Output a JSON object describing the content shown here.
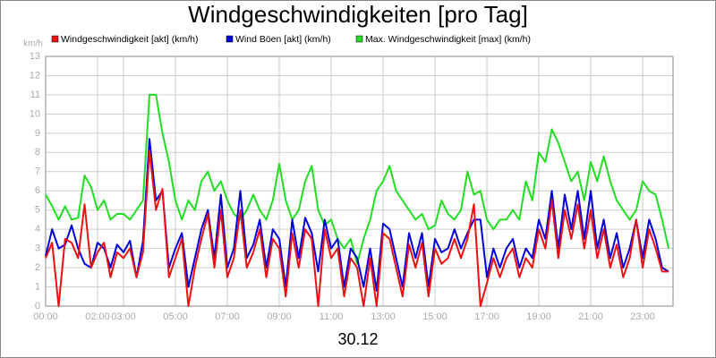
{
  "chart_data": {
    "type": "line",
    "title": "Windgeschwindigkeiten [pro Tag]",
    "y_label": "km/h",
    "x_label": "30.12",
    "xlim": [
      0,
      24.17
    ],
    "xticks": [
      {
        "value": 0,
        "label": "00:00"
      },
      {
        "value": 2,
        "label": "02:00"
      },
      {
        "value": 3,
        "label": "03:00"
      },
      {
        "value": 5,
        "label": "05:00"
      },
      {
        "value": 7,
        "label": "07:00"
      },
      {
        "value": 9,
        "label": "09:00"
      },
      {
        "value": 11,
        "label": "11:00"
      },
      {
        "value": 13,
        "label": "13:00"
      },
      {
        "value": 15,
        "label": "15:00"
      },
      {
        "value": 17,
        "label": "17:00"
      },
      {
        "value": 19,
        "label": "19:00"
      },
      {
        "value": 21,
        "label": "21:00"
      },
      {
        "value": 23,
        "label": "23:00"
      }
    ],
    "ylim": [
      0,
      13
    ],
    "yticks": [
      0,
      1,
      2,
      3,
      4,
      5,
      6,
      7,
      8,
      9,
      10,
      11,
      12,
      13
    ],
    "grid": true,
    "legend": "top-left",
    "x": [
      0,
      0.25,
      0.5,
      0.75,
      1,
      1.25,
      1.5,
      1.75,
      2,
      2.25,
      2.5,
      2.75,
      3,
      3.25,
      3.5,
      3.75,
      4,
      4.25,
      4.5,
      4.75,
      5,
      5.25,
      5.5,
      5.75,
      6,
      6.25,
      6.5,
      6.75,
      7,
      7.25,
      7.5,
      7.75,
      8,
      8.25,
      8.5,
      8.75,
      9,
      9.25,
      9.5,
      9.75,
      10,
      10.25,
      10.5,
      10.75,
      11,
      11.25,
      11.5,
      11.75,
      12,
      12.25,
      12.5,
      12.75,
      13,
      13.25,
      13.5,
      13.75,
      14,
      14.25,
      14.5,
      14.75,
      15,
      15.25,
      15.5,
      15.75,
      16,
      16.25,
      16.5,
      16.75,
      17,
      17.25,
      17.5,
      17.75,
      18,
      18.25,
      18.5,
      18.75,
      19,
      19.25,
      19.5,
      19.75,
      20,
      20.25,
      20.5,
      20.75,
      21,
      21.25,
      21.5,
      21.75,
      22,
      22.25,
      22.5,
      22.75,
      23,
      23.25,
      23.5,
      23.75,
      24
    ],
    "series": [
      {
        "name": "Windgeschwindigkeit [akt] (km/h)",
        "color": "#ee1111",
        "values": [
          2.5,
          3.3,
          0.0,
          3.5,
          3.3,
          2.5,
          5.3,
          2.0,
          2.8,
          3.3,
          1.5,
          2.8,
          2.5,
          3.0,
          1.5,
          2.8,
          8.1,
          5.0,
          6.1,
          1.5,
          2.5,
          3.5,
          0.0,
          2.0,
          3.5,
          4.8,
          2.0,
          5.0,
          1.5,
          2.5,
          5.0,
          2.0,
          2.8,
          4.0,
          1.5,
          3.5,
          3.0,
          0.5,
          3.8,
          2.0,
          4.0,
          3.5,
          0.0,
          4.0,
          2.5,
          3.0,
          0.5,
          2.5,
          2.0,
          0.0,
          2.5,
          0.0,
          3.8,
          3.5,
          2.0,
          0.5,
          3.2,
          2.0,
          3.3,
          0.5,
          3.0,
          2.2,
          2.5,
          3.5,
          2.5,
          3.5,
          5.3,
          0.0,
          1.2,
          2.5,
          1.5,
          2.5,
          3.0,
          1.5,
          2.5,
          2.0,
          4.0,
          3.0,
          5.5,
          2.5,
          5.0,
          3.5,
          5.3,
          3.0,
          5.0,
          2.5,
          4.0,
          2.0,
          3.2,
          1.5,
          2.5,
          4.5,
          2.0,
          4.0,
          3.0,
          1.8,
          1.8
        ]
      },
      {
        "name": "Wind Böen [akt] (km/h)",
        "color": "#0000dd",
        "values": [
          2.6,
          4.0,
          3.0,
          3.2,
          4.2,
          3.0,
          2.2,
          2.0,
          3.3,
          3.0,
          2.0,
          3.2,
          2.8,
          3.4,
          1.5,
          3.4,
          8.7,
          5.5,
          6.0,
          2.0,
          3.0,
          3.8,
          1.0,
          2.5,
          4.0,
          5.0,
          2.5,
          5.8,
          2.0,
          3.0,
          6.0,
          2.5,
          3.2,
          4.5,
          2.0,
          4.0,
          3.5,
          1.0,
          4.5,
          2.5,
          4.6,
          3.8,
          1.8,
          4.5,
          3.0,
          3.5,
          1.0,
          3.0,
          2.5,
          1.0,
          3.0,
          0.8,
          4.3,
          4.0,
          2.5,
          1.0,
          3.8,
          2.5,
          3.8,
          1.0,
          3.5,
          2.8,
          3.0,
          4.0,
          3.0,
          3.8,
          4.5,
          4.5,
          1.5,
          3.0,
          2.0,
          3.0,
          3.5,
          2.0,
          3.0,
          2.5,
          4.5,
          3.5,
          6.0,
          3.0,
          5.8,
          4.0,
          6.0,
          3.5,
          6.0,
          3.0,
          4.5,
          2.5,
          3.8,
          2.0,
          3.0,
          4.5,
          2.5,
          4.5,
          3.5,
          2.0,
          1.8
        ]
      },
      {
        "name": "Max. Windgeschwindigkeit [max] (km/h)",
        "color": "#22dd22",
        "values": [
          5.8,
          5.2,
          4.5,
          5.2,
          4.5,
          4.6,
          6.8,
          6.2,
          5.0,
          5.5,
          4.5,
          4.8,
          4.8,
          4.5,
          5.0,
          5.5,
          11.0,
          11.0,
          9.0,
          7.5,
          5.5,
          4.5,
          5.5,
          5.0,
          6.5,
          7.0,
          6.0,
          6.5,
          5.5,
          4.8,
          4.5,
          5.0,
          5.8,
          5.0,
          4.5,
          5.5,
          7.4,
          5.5,
          4.5,
          5.0,
          6.5,
          7.3,
          5.0,
          4.2,
          4.5,
          3.5,
          3.0,
          3.5,
          2.2,
          3.5,
          4.5,
          6.0,
          6.5,
          7.3,
          6.0,
          5.5,
          5.0,
          4.5,
          4.8,
          4.0,
          4.2,
          5.5,
          4.8,
          4.5,
          5.0,
          7.0,
          5.8,
          6.0,
          4.5,
          4.0,
          4.5,
          4.5,
          5.0,
          4.5,
          6.5,
          5.5,
          8.0,
          7.5,
          9.2,
          8.5,
          7.5,
          6.5,
          7.0,
          5.5,
          7.5,
          6.5,
          7.8,
          6.5,
          5.5,
          5.0,
          4.5,
          5.0,
          6.5,
          6.0,
          5.8,
          4.5,
          3.0
        ]
      }
    ]
  }
}
